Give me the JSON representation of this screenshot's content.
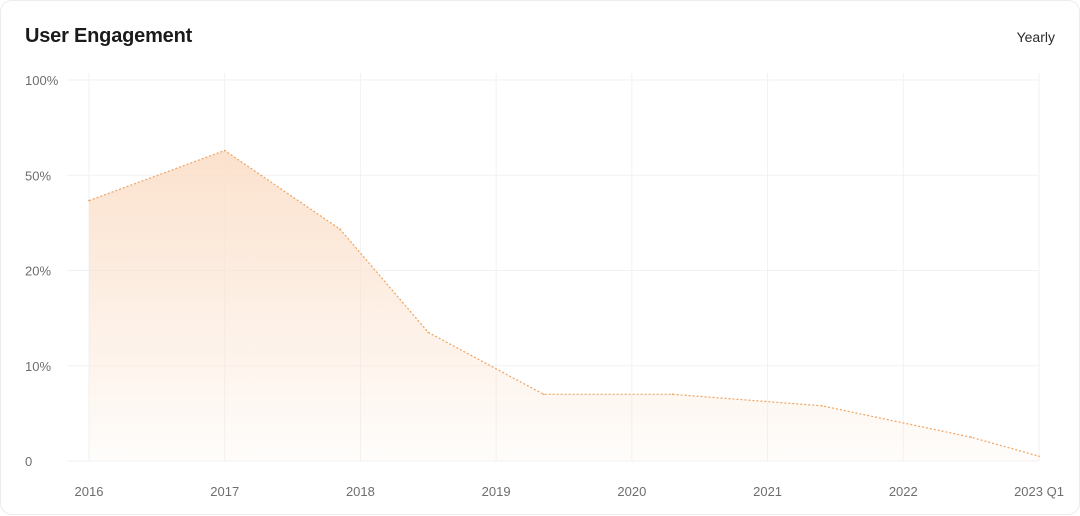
{
  "header": {
    "title": "User Engagement",
    "period_label": "Yearly"
  },
  "colors": {
    "accent": "#f0a25f",
    "fill_top": "#fbe0cb",
    "grid": "#f2f2f2",
    "tick_text": "#6e6e6e"
  },
  "chart_data": {
    "type": "area",
    "title": "User Engagement",
    "xlabel": "",
    "ylabel": "",
    "y_ticks": [
      "0",
      "10%",
      "20%",
      "50%",
      "100%"
    ],
    "y_scale": "non-linear (tick labels evenly spaced)",
    "ylim": [
      0,
      100
    ],
    "x_ticks": [
      "2016",
      "2017",
      "2018",
      "2019",
      "2020",
      "2021",
      "2022",
      "2023 Q1"
    ],
    "grid": true,
    "legend": "none",
    "series": [
      {
        "x": [
          2016,
          2017,
          2017.85,
          2018.5,
          2019.35,
          2020.3,
          2021.4,
          2022.5,
          2023.0
        ],
        "y": [
          42,
          63,
          33,
          13.5,
          7,
          7,
          5.8,
          2.5,
          0.5
        ]
      }
    ]
  }
}
